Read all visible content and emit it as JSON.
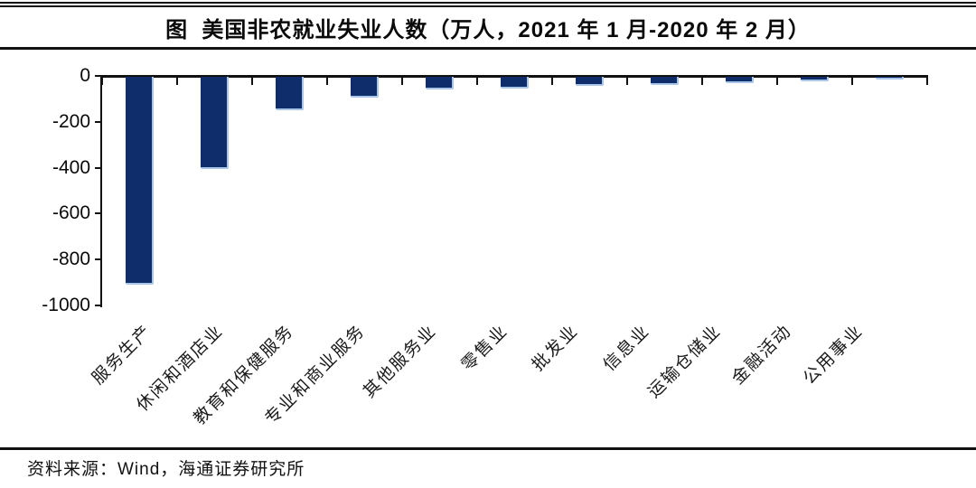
{
  "header": {
    "title": "图  美国非农就业失业人数（万人，2021 年 1 月-2020 年 2 月）"
  },
  "footer": {
    "source": "资料来源：Wind，海通证券研究所"
  },
  "chart_data": {
    "type": "bar",
    "title": "美国非农就业失业人数（万人，2021 年 1 月-2020 年 2 月）",
    "unit": "万人",
    "categories": [
      "服务生产",
      "休闲和酒店业",
      "教育和保健服务",
      "专业和商业服务",
      "其他服务业",
      "零售业",
      "批发业",
      "信息业",
      "运输仓储业",
      "金融活动",
      "公用事业"
    ],
    "values": [
      -905,
      -400,
      -145,
      -90,
      -57,
      -50,
      -40,
      -35,
      -27,
      -20,
      -10
    ],
    "ylim": [
      -1000,
      0
    ],
    "yticks": [
      0,
      -200,
      -400,
      -600,
      -800,
      -1000
    ],
    "grid": false,
    "legend": null,
    "colors": {
      "bar": "#0f2d6b",
      "bar_edge": "#a9c5e8",
      "axis": "#111111"
    }
  }
}
